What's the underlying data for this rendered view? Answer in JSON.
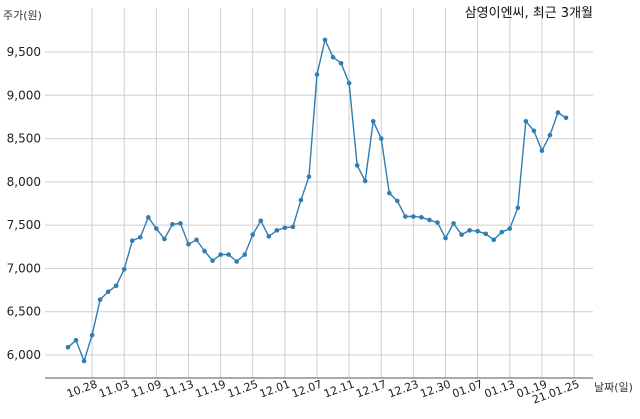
{
  "chart_data": {
    "type": "line",
    "title": "삼영이엔씨, 최근 3개월",
    "ylabel": "주가(원)",
    "xlabel": "날짜(일)",
    "ylim": [
      5700,
      9900
    ],
    "yticks": [
      6000,
      6500,
      7000,
      7500,
      8000,
      8500,
      9000,
      9500
    ],
    "ytick_labels": [
      "6,000",
      "6,500",
      "7,000",
      "7,500",
      "8,000",
      "8,500",
      "9,000",
      "9,500"
    ],
    "xtick_labels": [
      "10.28",
      "11.03",
      "11.09",
      "11.13",
      "11.19",
      "11.25",
      "12.01",
      "12.07",
      "12.11",
      "12.17",
      "12.23",
      "12.30",
      "01.07",
      "01.13",
      "01.19",
      "21.01.25"
    ],
    "xtick_index": [
      3,
      7,
      11,
      15,
      19,
      23,
      27,
      31,
      35,
      39,
      43,
      47,
      51,
      55,
      59,
      63
    ],
    "grid": true,
    "color": "#2f7db3",
    "series": [
      {
        "values": [
          6090,
          6170,
          5930,
          6230,
          6640,
          6730,
          6800,
          6990,
          7320,
          7360,
          7590,
          7460,
          7340,
          7510,
          7520,
          7280,
          7330,
          7200,
          7090,
          7160,
          7160,
          7080,
          7160,
          7390,
          7550,
          7370,
          7440,
          7470,
          7480,
          7790,
          8060,
          9240,
          9640,
          9440,
          9370,
          9140,
          8190,
          8010,
          8700,
          8500,
          7870,
          7780,
          7600,
          7600,
          7590,
          7560,
          7530,
          7350,
          7520,
          7390,
          7440,
          7430,
          7400,
          7330,
          7420,
          7460,
          7700,
          8700,
          8590,
          8360,
          8540,
          8800,
          8740
        ]
      }
    ]
  }
}
